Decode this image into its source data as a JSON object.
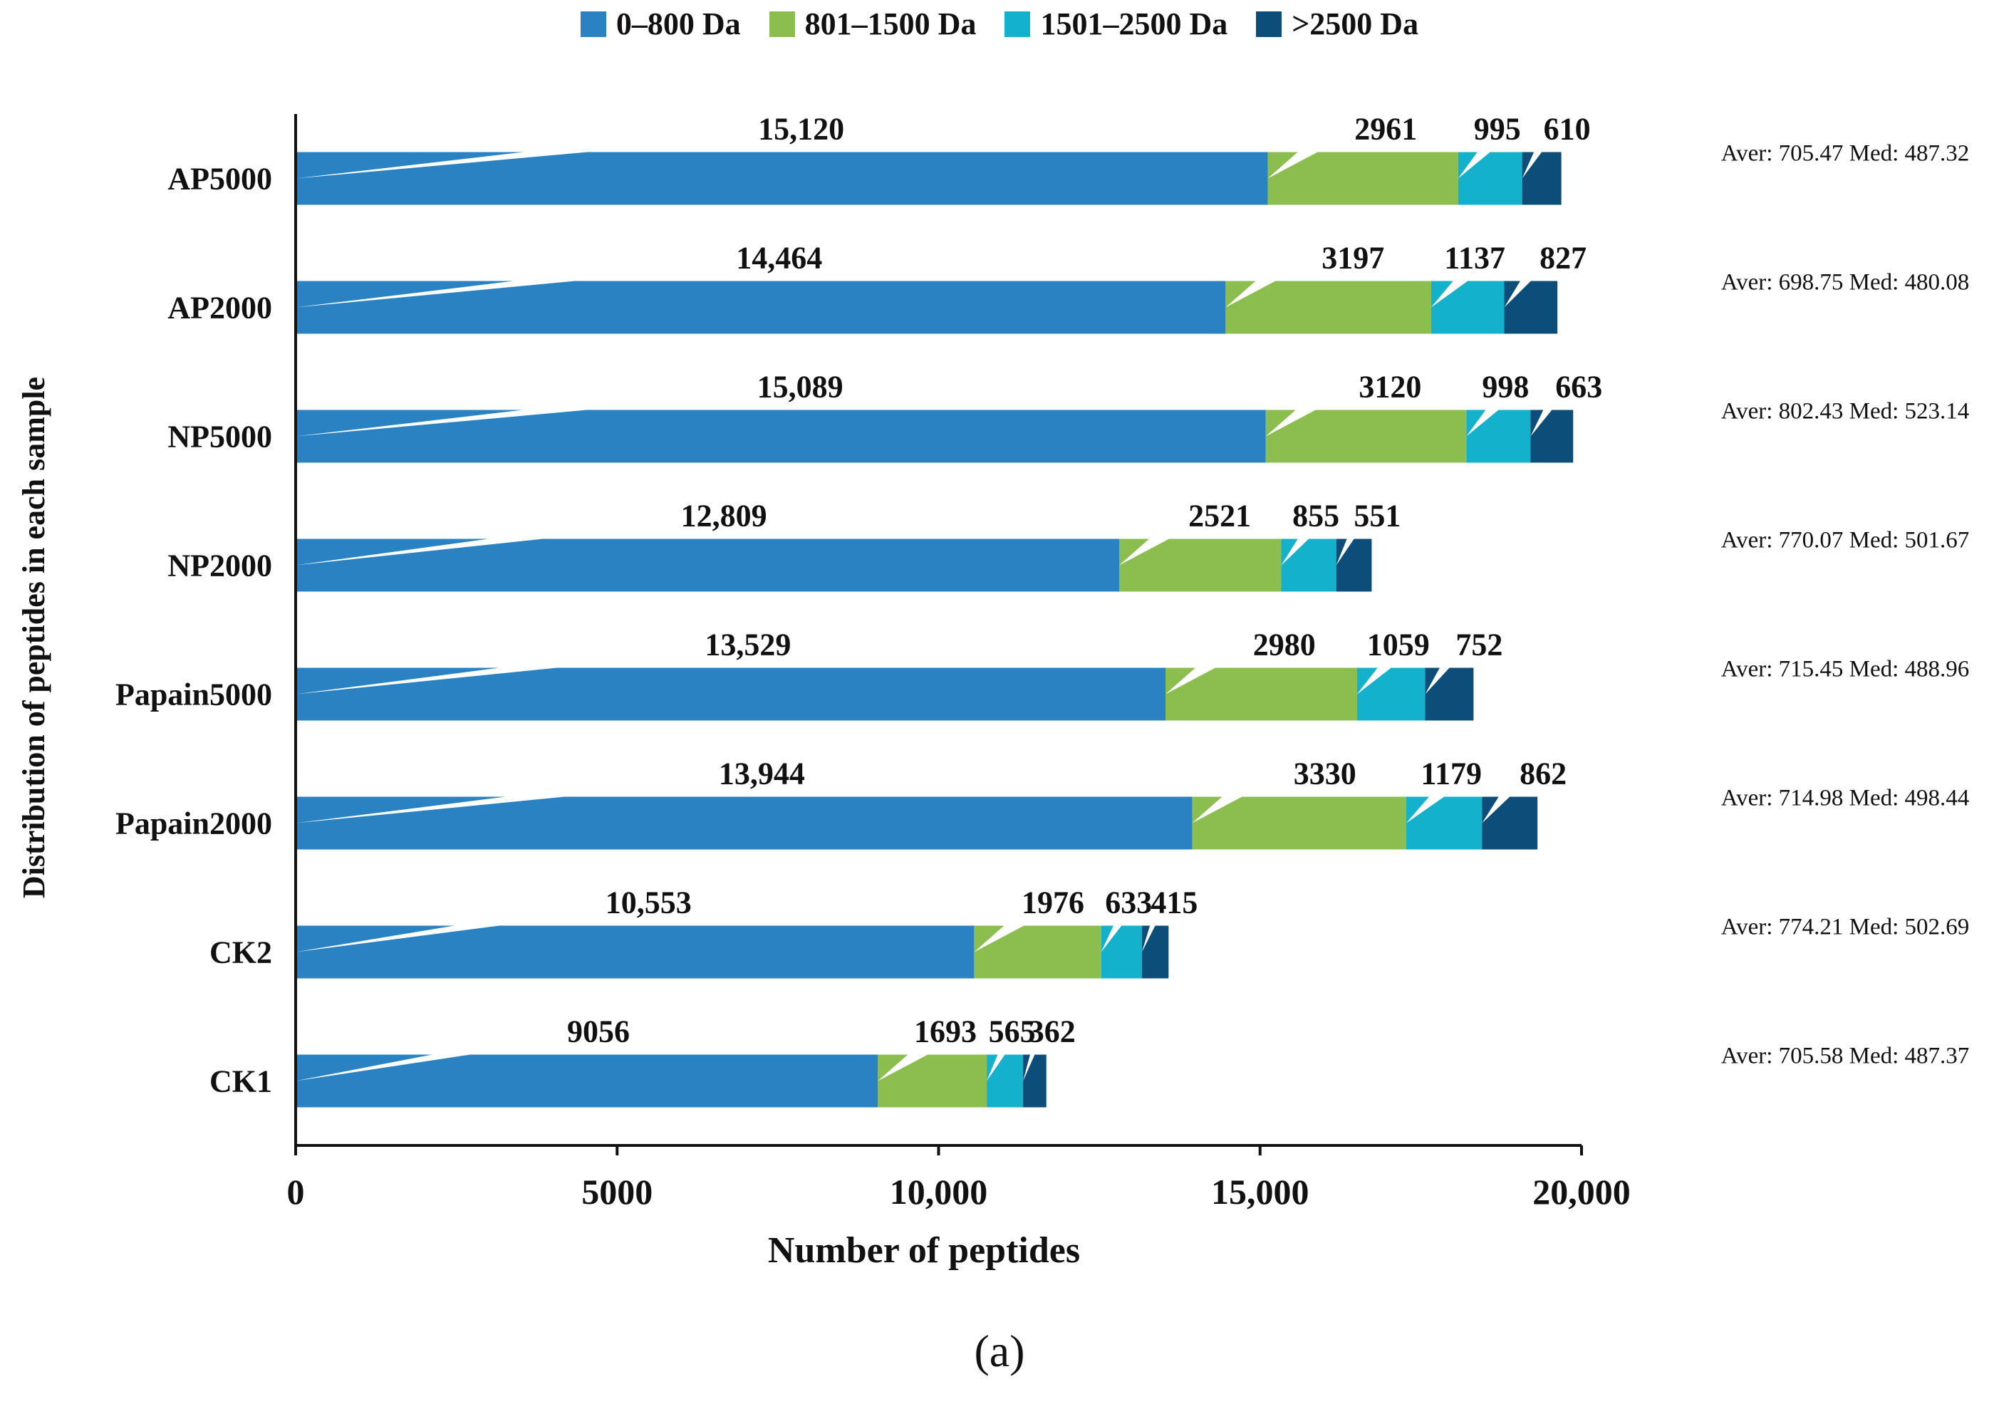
{
  "chart_data": {
    "type": "bar",
    "orientation": "horizontal",
    "stacked": true,
    "xlabel": "Number of peptides",
    "ylabel": "Distribution of peptides in each sample",
    "xlim": [
      0,
      20000
    ],
    "xticks": [
      0,
      5000,
      10000,
      15000,
      20000
    ],
    "xtick_labels": [
      "0",
      "5000",
      "10,000",
      "15,000",
      "20,000"
    ],
    "categories": [
      "AP5000",
      "AP2000",
      "NP5000",
      "NP2000",
      "Papain5000",
      "Papain2000",
      "CK2",
      "CK1"
    ],
    "series": [
      {
        "name": "0–800 Da",
        "color": "#2a82c2",
        "values": [
          15120,
          14464,
          15089,
          12809,
          13529,
          13944,
          10553,
          9056
        ],
        "labels": [
          "15,120",
          "14,464",
          "15,089",
          "12,809",
          "13,529",
          "13,944",
          "10,553",
          "9056"
        ]
      },
      {
        "name": "801–1500 Da",
        "color": "#8cbd4f",
        "values": [
          2961,
          3197,
          3120,
          2521,
          2980,
          3330,
          1976,
          1693
        ],
        "labels": [
          "2961",
          "3197",
          "3120",
          "2521",
          "2980",
          "3330",
          "1976",
          "1693"
        ]
      },
      {
        "name": "1501–2500 Da",
        "color": "#14b1cc",
        "values": [
          995,
          1137,
          998,
          855,
          1059,
          1179,
          633,
          565
        ],
        "labels": [
          "995",
          "1137",
          "998",
          "855",
          "1059",
          "1179",
          "633",
          "565"
        ]
      },
      {
        "name": ">2500 Da",
        "color": "#0c4d7a",
        "values": [
          610,
          827,
          663,
          551,
          752,
          862,
          415,
          362
        ],
        "labels": [
          "610",
          "827",
          "663",
          "551",
          "752",
          "862",
          "415",
          "362"
        ]
      }
    ],
    "stats": [
      "Aver: 705.47 Med: 487.32",
      "Aver: 698.75 Med: 480.08",
      "Aver: 802.43 Med: 523.14",
      "Aver: 770.07 Med: 501.67",
      "Aver: 715.45 Med: 488.96",
      "Aver: 714.98 Med: 498.44",
      "Aver: 774.21 Med: 502.69",
      "Aver: 705.58 Med: 487.37"
    ]
  },
  "caption": "(a)"
}
